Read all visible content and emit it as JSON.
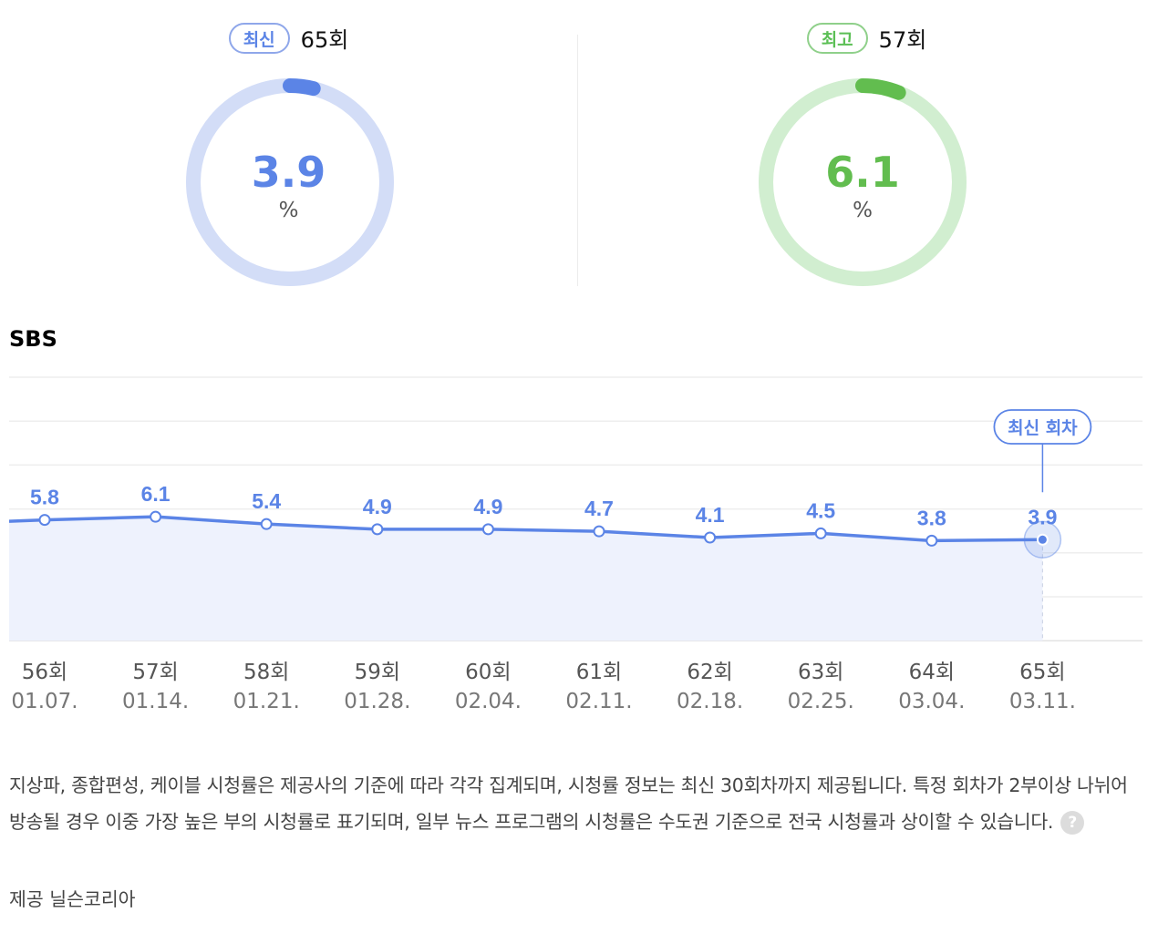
{
  "summary": {
    "latest": {
      "badge": "최신",
      "episode": "65회",
      "value": "3.9",
      "value_num": 3.9,
      "unit": "%",
      "color": "#5b84e6",
      "track_color": "#d3ddf7"
    },
    "best": {
      "badge": "최고",
      "episode": "57회",
      "value": "6.1",
      "value_num": 6.1,
      "unit": "%",
      "color": "#62bd4f",
      "track_color": "#d1eed0"
    }
  },
  "channel": "SBS",
  "chart_data": {
    "type": "area",
    "categories": [
      "56회",
      "57회",
      "58회",
      "59회",
      "60회",
      "61회",
      "62회",
      "63회",
      "64회",
      "65회"
    ],
    "dates": [
      "01.07.",
      "01.14.",
      "01.21.",
      "01.28.",
      "02.04.",
      "02.11.",
      "02.18.",
      "02.25.",
      "03.04.",
      "03.11."
    ],
    "values": [
      5.8,
      6.1,
      5.4,
      4.9,
      4.9,
      4.7,
      4.1,
      4.5,
      3.8,
      3.9
    ],
    "value_labels": [
      "5.8",
      "6.1",
      "5.4",
      "4.9",
      "4.9",
      "4.7",
      "4.1",
      "4.5",
      "3.8",
      "3.9"
    ],
    "highlight_index": 9,
    "highlight_label": "최신 회차",
    "grid": true,
    "line_color": "#5b84e6"
  },
  "notice": "지상파, 종합편성, 케이블 시청률은 제공사의 기준에 따라 각각 집계되며, 시청률 정보는 최신 30회차까지 제공됩니다. 특정 회차가 2부이상 나뉘어 방송될 경우 이중 가장 높은 부의 시청률로 표기되며, 일부 뉴스 프로그램의 시청률은 수도권 기준으로 전국 시청률과 상이할 수 있습니다.",
  "help_icon": "question-icon",
  "help_glyph": "?",
  "provider": "제공 닐슨코리아"
}
